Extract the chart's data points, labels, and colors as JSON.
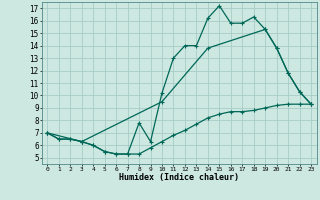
{
  "xlabel": "Humidex (Indice chaleur)",
  "background_color": "#cce8e0",
  "grid_color": "#a8ccc8",
  "line_color": "#006858",
  "xlim": [
    -0.5,
    23.5
  ],
  "ylim": [
    4.5,
    17.5
  ],
  "xticks": [
    0,
    1,
    2,
    3,
    4,
    5,
    6,
    7,
    8,
    9,
    10,
    11,
    12,
    13,
    14,
    15,
    16,
    17,
    18,
    19,
    20,
    21,
    22,
    23
  ],
  "yticks": [
    5,
    6,
    7,
    8,
    9,
    10,
    11,
    12,
    13,
    14,
    15,
    16,
    17
  ],
  "line1_x": [
    0,
    1,
    2,
    3,
    4,
    5,
    6,
    7,
    8,
    9,
    10,
    11,
    12,
    13,
    14,
    15,
    16,
    17,
    18,
    19,
    20,
    21,
    22,
    23
  ],
  "line1_y": [
    7.0,
    6.5,
    6.5,
    6.3,
    6.0,
    5.5,
    5.3,
    5.3,
    5.3,
    5.8,
    6.3,
    6.8,
    7.2,
    7.7,
    8.2,
    8.5,
    8.7,
    8.7,
    8.8,
    9.0,
    9.2,
    9.3,
    9.3,
    9.3
  ],
  "line2_x": [
    0,
    1,
    2,
    3,
    4,
    5,
    6,
    7,
    8,
    9,
    10,
    11,
    12,
    13,
    14,
    15,
    16,
    17,
    18,
    19,
    20,
    21,
    22,
    23
  ],
  "line2_y": [
    7.0,
    6.5,
    6.5,
    6.3,
    6.0,
    5.5,
    5.3,
    5.3,
    7.8,
    6.3,
    10.2,
    13.0,
    14.0,
    14.0,
    16.2,
    17.2,
    15.8,
    15.8,
    16.3,
    15.3,
    13.8,
    11.8,
    10.3,
    9.3
  ],
  "line3_x": [
    0,
    3,
    10,
    14,
    19,
    20,
    21,
    22,
    23
  ],
  "line3_y": [
    7.0,
    6.3,
    9.5,
    13.8,
    15.3,
    13.8,
    11.8,
    10.3,
    9.3
  ]
}
